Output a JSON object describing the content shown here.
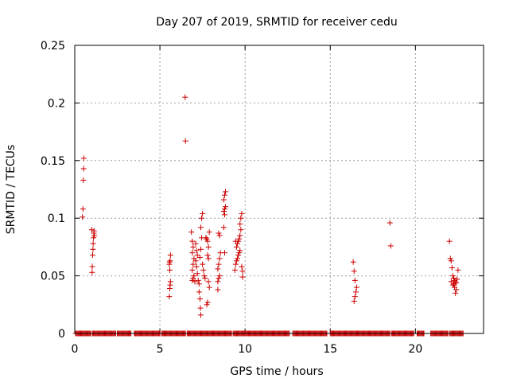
{
  "chart_data": {
    "type": "scatter",
    "title": "Day 207 of 2019, SRMTID for receiver cedu",
    "xlabel": "GPS time / hours",
    "ylabel": "SRMTID / TECUs",
    "xlim": [
      0,
      24
    ],
    "ylim": [
      0,
      0.25
    ],
    "grid": true,
    "x_ticks": [
      0,
      5,
      10,
      15,
      20
    ],
    "x_tick_labels": [
      "0",
      "5",
      "10",
      "15",
      "20"
    ],
    "y_ticks": [
      0,
      0.05,
      0.1,
      0.15,
      0.2,
      0.25
    ],
    "y_tick_labels": [
      "0",
      "0.05",
      "0.1",
      "0.15",
      "0.2",
      "0.25"
    ],
    "marker": "+",
    "colors": {
      "series": "#cc0000",
      "grid": "#a0a0a0",
      "axis": "#000000"
    },
    "series": [
      {
        "name": "SRMTID",
        "baseline_segments": [
          [
            0.05,
            0.95
          ],
          [
            1.05,
            2.4
          ],
          [
            2.5,
            3.3
          ],
          [
            3.5,
            5.0
          ],
          [
            5.1,
            6.5
          ],
          [
            6.6,
            9.2
          ],
          [
            9.3,
            12.6
          ],
          [
            12.8,
            14.8
          ],
          [
            15.0,
            18.5
          ],
          [
            18.6,
            19.9
          ],
          [
            20.1,
            20.5
          ],
          [
            20.9,
            21.9
          ],
          [
            22.0,
            22.8
          ]
        ],
        "points": [
          [
            0.45,
            0.101
          ],
          [
            0.48,
            0.108
          ],
          [
            0.5,
            0.133
          ],
          [
            0.52,
            0.143
          ],
          [
            0.53,
            0.152
          ],
          [
            1.02,
            0.053
          ],
          [
            1.03,
            0.058
          ],
          [
            1.05,
            0.068
          ],
          [
            1.07,
            0.073
          ],
          [
            1.08,
            0.078
          ],
          [
            1.1,
            0.083
          ],
          [
            1.12,
            0.087
          ],
          [
            1.13,
            0.089
          ],
          [
            1.15,
            0.085
          ],
          [
            1.0,
            0.09
          ],
          [
            5.55,
            0.032
          ],
          [
            5.58,
            0.039
          ],
          [
            5.6,
            0.042
          ],
          [
            5.62,
            0.045
          ],
          [
            5.55,
            0.06
          ],
          [
            5.57,
            0.062
          ],
          [
            5.6,
            0.063
          ],
          [
            5.62,
            0.068
          ],
          [
            5.58,
            0.055
          ],
          [
            6.48,
            0.205
          ],
          [
            6.5,
            0.167
          ],
          [
            6.85,
            0.088
          ],
          [
            6.9,
            0.08
          ],
          [
            6.95,
            0.075
          ],
          [
            6.9,
            0.07
          ],
          [
            7.0,
            0.065
          ],
          [
            6.95,
            0.06
          ],
          [
            6.9,
            0.055
          ],
          [
            7.0,
            0.05
          ],
          [
            6.95,
            0.048
          ],
          [
            6.9,
            0.046
          ],
          [
            7.05,
            0.045
          ],
          [
            7.1,
            0.078
          ],
          [
            7.15,
            0.072
          ],
          [
            7.2,
            0.068
          ],
          [
            7.1,
            0.063
          ],
          [
            7.15,
            0.058
          ],
          [
            7.2,
            0.052
          ],
          [
            7.25,
            0.046
          ],
          [
            7.3,
            0.043
          ],
          [
            7.3,
            0.036
          ],
          [
            7.35,
            0.03
          ],
          [
            7.38,
            0.022
          ],
          [
            7.4,
            0.016
          ],
          [
            7.35,
            0.066
          ],
          [
            7.4,
            0.073
          ],
          [
            7.45,
            0.083
          ],
          [
            7.4,
            0.092
          ],
          [
            7.45,
            0.1
          ],
          [
            7.5,
            0.104
          ],
          [
            7.5,
            0.06
          ],
          [
            7.55,
            0.055
          ],
          [
            7.6,
            0.05
          ],
          [
            7.65,
            0.048
          ],
          [
            7.7,
            0.083
          ],
          [
            7.75,
            0.082
          ],
          [
            7.8,
            0.08
          ],
          [
            7.85,
            0.075
          ],
          [
            7.8,
            0.068
          ],
          [
            7.85,
            0.065
          ],
          [
            7.9,
            0.088
          ],
          [
            7.75,
            0.025
          ],
          [
            7.8,
            0.027
          ],
          [
            7.85,
            0.045
          ],
          [
            7.9,
            0.04
          ],
          [
            8.4,
            0.045
          ],
          [
            8.45,
            0.048
          ],
          [
            8.5,
            0.05
          ],
          [
            8.4,
            0.056
          ],
          [
            8.45,
            0.06
          ],
          [
            8.5,
            0.065
          ],
          [
            8.55,
            0.07
          ],
          [
            8.4,
            0.038
          ],
          [
            8.5,
            0.085
          ],
          [
            8.45,
            0.087
          ],
          [
            8.75,
            0.092
          ],
          [
            8.8,
            0.103
          ],
          [
            8.75,
            0.106
          ],
          [
            8.8,
            0.108
          ],
          [
            8.85,
            0.11
          ],
          [
            8.75,
            0.116
          ],
          [
            8.8,
            0.12
          ],
          [
            8.85,
            0.123
          ],
          [
            8.8,
            0.07
          ],
          [
            9.4,
            0.055
          ],
          [
            9.45,
            0.06
          ],
          [
            9.5,
            0.063
          ],
          [
            9.55,
            0.065
          ],
          [
            9.6,
            0.068
          ],
          [
            9.65,
            0.07
          ],
          [
            9.5,
            0.075
          ],
          [
            9.55,
            0.078
          ],
          [
            9.6,
            0.08
          ],
          [
            9.65,
            0.082
          ],
          [
            9.7,
            0.085
          ],
          [
            9.75,
            0.09
          ],
          [
            9.7,
            0.095
          ],
          [
            9.75,
            0.1
          ],
          [
            9.8,
            0.104
          ],
          [
            9.8,
            0.058
          ],
          [
            9.85,
            0.054
          ],
          [
            9.85,
            0.049
          ],
          [
            9.45,
            0.08
          ],
          [
            9.7,
            0.072
          ],
          [
            16.4,
            0.028
          ],
          [
            16.45,
            0.032
          ],
          [
            16.5,
            0.036
          ],
          [
            16.55,
            0.04
          ],
          [
            16.45,
            0.046
          ],
          [
            16.4,
            0.054
          ],
          [
            16.35,
            0.062
          ],
          [
            18.5,
            0.096
          ],
          [
            18.55,
            0.076
          ],
          [
            22.0,
            0.08
          ],
          [
            22.05,
            0.065
          ],
          [
            22.1,
            0.063
          ],
          [
            22.15,
            0.057
          ],
          [
            22.2,
            0.05
          ],
          [
            22.25,
            0.048
          ],
          [
            22.3,
            0.046
          ],
          [
            22.35,
            0.044
          ],
          [
            22.2,
            0.042
          ],
          [
            22.3,
            0.04
          ],
          [
            22.4,
            0.038
          ],
          [
            22.35,
            0.035
          ],
          [
            22.45,
            0.047
          ],
          [
            22.5,
            0.055
          ],
          [
            22.1,
            0.045
          ],
          [
            22.25,
            0.043
          ],
          [
            22.4,
            0.044
          ]
        ]
      }
    ]
  }
}
